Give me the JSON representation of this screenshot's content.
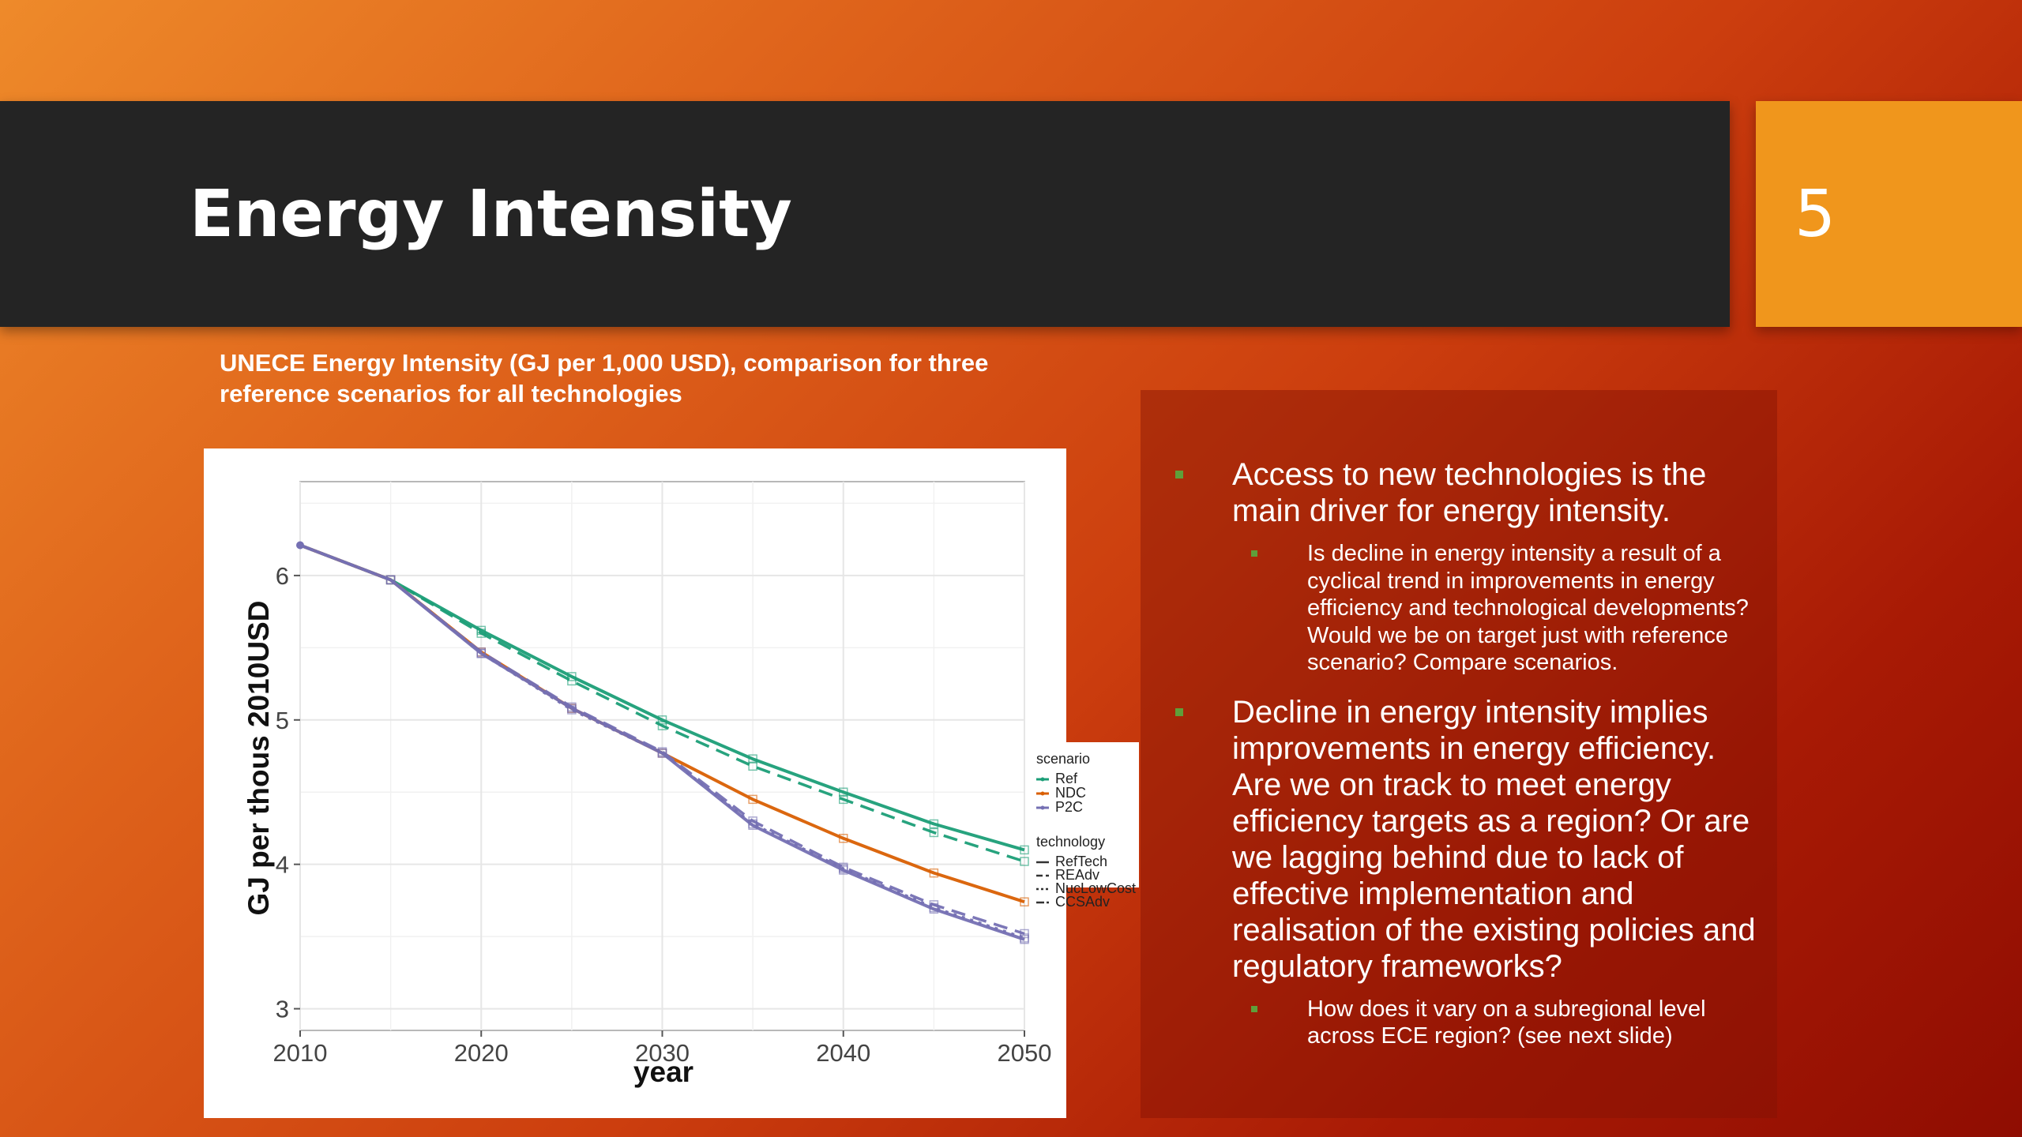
{
  "slide": {
    "title": "Energy Intensity",
    "page_number": "5",
    "caption": "UNECE Energy Intensity (GJ per 1,000 USD), comparison for three reference scenarios for all technologies"
  },
  "bullets": [
    {
      "text": "Access to new technologies is the main driver for energy intensity.",
      "sub": [
        "Is decline in energy intensity a result of a cyclical trend in improvements in energy efficiency and technological developments? Would we be on target just with reference scenario? Compare scenarios."
      ]
    },
    {
      "text": "Decline in energy intensity implies improvements in energy efficiency. Are we on track to meet energy efficiency targets as a region? Or are we lagging behind due to lack of effective implementation and realisation of the existing policies and regulatory frameworks?",
      "sub": [
        "How does it vary on a subregional level across ECE region? (see next slide)"
      ]
    }
  ],
  "colors": {
    "Ref": "#1b9e77",
    "NDC": "#d95f02",
    "P2C": "#7570b3",
    "marker": "#5f9f3a"
  },
  "chart_data": {
    "type": "line",
    "xlabel": "year",
    "ylabel": "GJ per thous 2010USD",
    "xlim": [
      2010,
      2050
    ],
    "ylim": [
      2.85,
      6.65
    ],
    "x_ticks": [
      2010,
      2020,
      2030,
      2040,
      2050
    ],
    "y_ticks": [
      3,
      4,
      5,
      6
    ],
    "grid": true,
    "legend_placement": "right",
    "legend": {
      "scenario_title": "scenario",
      "scenarios": [
        "Ref",
        "NDC",
        "P2C"
      ],
      "technology_title": "technology",
      "technologies": [
        "RefTech",
        "REAdv",
        "NucLowCost",
        "CCSAdv"
      ]
    },
    "x": [
      2010,
      2015,
      2020,
      2025,
      2030,
      2035,
      2040,
      2045,
      2050
    ],
    "series": [
      {
        "name": "Ref",
        "technology": "RefTech",
        "dash": "solid",
        "values": [
          6.21,
          5.97,
          5.62,
          5.3,
          5.0,
          4.73,
          4.5,
          4.28,
          4.1
        ]
      },
      {
        "name": "Ref",
        "technology": "REAdv",
        "dash": "dashed",
        "values": [
          6.21,
          5.97,
          5.6,
          5.27,
          4.96,
          4.68,
          4.45,
          4.22,
          4.02
        ]
      },
      {
        "name": "NDC",
        "technology": "RefTech",
        "dash": "solid",
        "values": [
          6.21,
          5.97,
          5.47,
          5.08,
          4.77,
          4.45,
          4.18,
          3.94,
          3.74
        ]
      },
      {
        "name": "P2C",
        "technology": "RefTech",
        "dash": "solid",
        "values": [
          6.21,
          5.97,
          5.46,
          5.08,
          4.77,
          4.27,
          3.96,
          3.69,
          3.48
        ]
      },
      {
        "name": "P2C",
        "technology": "REAdv",
        "dash": "dashed",
        "values": [
          6.21,
          5.97,
          5.47,
          5.09,
          4.78,
          4.3,
          3.98,
          3.72,
          3.52
        ]
      },
      {
        "name": "P2C",
        "technology": "NucLowCost",
        "dash": "dotted",
        "values": [
          6.21,
          5.97,
          5.46,
          5.07,
          4.77,
          4.28,
          3.97,
          3.7,
          3.49
        ]
      }
    ]
  }
}
